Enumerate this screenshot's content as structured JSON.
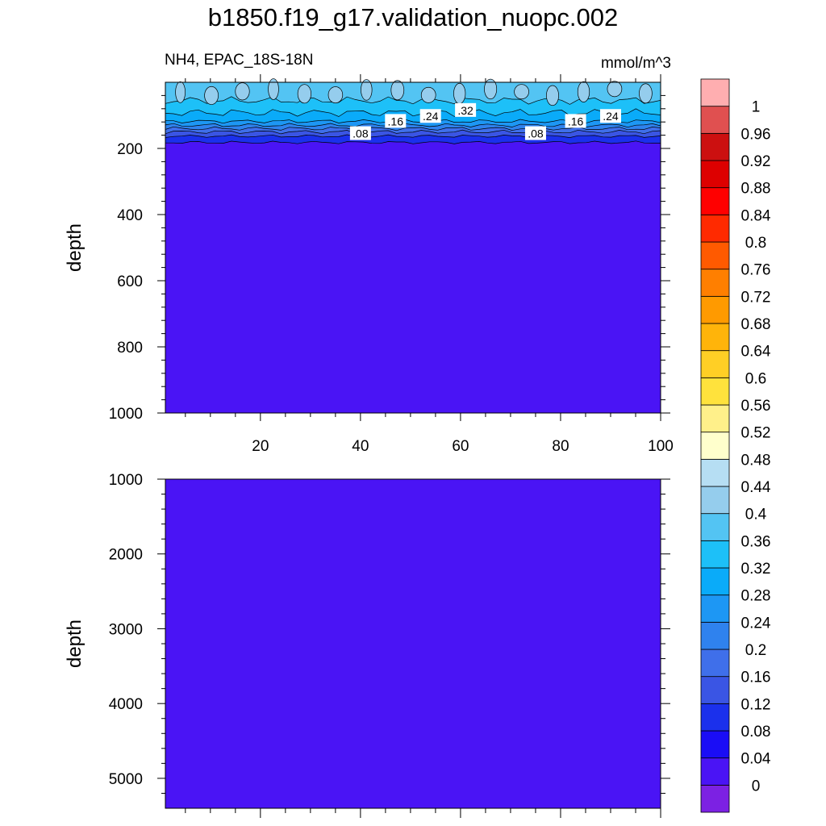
{
  "title": "b1850.f19_g17.validation_nuopc.002",
  "subtitle_left": "NH4, EPAC_18S-18N",
  "subtitle_right": "mmol/m^3",
  "chart_data": [
    {
      "type": "contour",
      "panel": "upper",
      "ylabel": "depth",
      "y_reversed": true,
      "ylim": [
        0,
        1000
      ],
      "xlim": [
        1,
        100
      ],
      "x_ticks": [
        "20",
        "40",
        "60",
        "80",
        "100"
      ],
      "y_ticks": [
        "200",
        "400",
        "600",
        "800",
        "1000"
      ],
      "contour_labels": [
        {
          "text": ".08",
          "x": 40,
          "y": 155
        },
        {
          "text": ".16",
          "x": 47,
          "y": 118
        },
        {
          "text": ".24",
          "x": 54,
          "y": 103
        },
        {
          "text": ".32",
          "x": 61,
          "y": 85
        },
        {
          "text": ".08",
          "x": 75,
          "y": 155
        },
        {
          "text": ".16",
          "x": 83,
          "y": 118
        },
        {
          "text": ".24",
          "x": 90,
          "y": 103
        }
      ],
      "background_value": 0.02
    },
    {
      "type": "contour",
      "panel": "lower",
      "ylabel": "depth",
      "y_reversed": true,
      "ylim": [
        1000,
        5400
      ],
      "xlim": [
        1,
        100
      ],
      "y_ticks": [
        "1000",
        "2000",
        "3000",
        "4000",
        "5000"
      ],
      "background_value": 0.02
    }
  ],
  "colorbar": {
    "labels": [
      "0",
      "0.04",
      "0.08",
      "0.12",
      "0.16",
      "0.2",
      "0.24",
      "0.28",
      "0.32",
      "0.36",
      "0.4",
      "0.44",
      "0.48",
      "0.52",
      "0.56",
      "0.6",
      "0.64",
      "0.68",
      "0.72",
      "0.76",
      "0.8",
      "0.84",
      "0.88",
      "0.92",
      "0.96",
      "1"
    ],
    "colors": [
      "#7c21e3",
      "#4a14f5",
      "#1a0df6",
      "#1b30ec",
      "#3a55e4",
      "#3f6fea",
      "#2f82ee",
      "#1d97f4",
      "#0aabf9",
      "#1dc0f8",
      "#53c4f3",
      "#95cded",
      "#b6def3",
      "#ffffcc",
      "#fff08a",
      "#ffe23c",
      "#ffcf25",
      "#ffb40a",
      "#ff9a00",
      "#ff7f00",
      "#ff5a00",
      "#ff2a00",
      "#ff0000",
      "#dd0000",
      "#cc1010",
      "#e05050",
      "#ffaeb0"
    ]
  }
}
